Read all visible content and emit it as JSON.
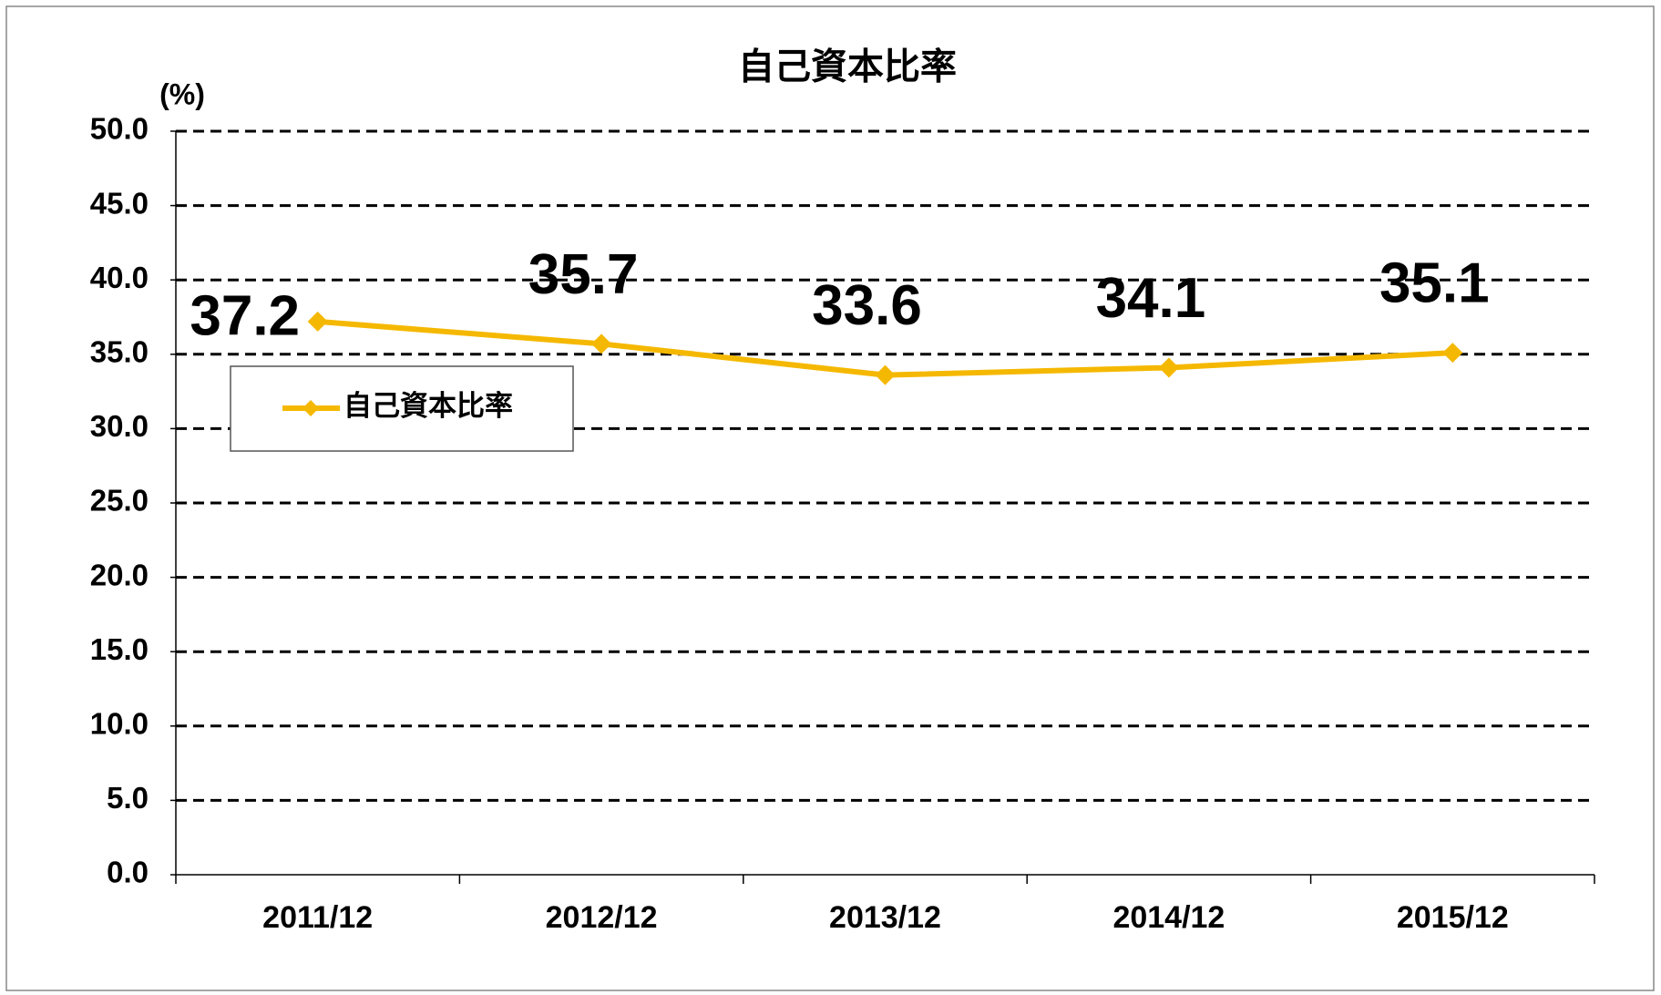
{
  "chart_data": {
    "type": "line",
    "title": "自己資本比率",
    "y_axis_label": "(%)",
    "categories": [
      "2011/12",
      "2012/12",
      "2013/12",
      "2014/12",
      "2015/12"
    ],
    "series": [
      {
        "name": "自己資本比率",
        "color": "#f5b800",
        "values": [
          37.2,
          35.7,
          33.6,
          34.1,
          35.1
        ]
      }
    ],
    "ylim": [
      0,
      50
    ],
    "yticks": [
      {
        "value": 0,
        "label": "0.0"
      },
      {
        "value": 5,
        "label": "5.0"
      },
      {
        "value": 10,
        "label": "10.0"
      },
      {
        "value": 15,
        "label": "15.0"
      },
      {
        "value": 20,
        "label": "20.0"
      },
      {
        "value": 25,
        "label": "25.0"
      },
      {
        "value": 30,
        "label": "30.0"
      },
      {
        "value": 35,
        "label": "35.0"
      },
      {
        "value": 40,
        "label": "40.0"
      },
      {
        "value": 45,
        "label": "45.0"
      },
      {
        "value": 50,
        "label": "50.0"
      }
    ],
    "grid": true,
    "legend": "upper left"
  }
}
